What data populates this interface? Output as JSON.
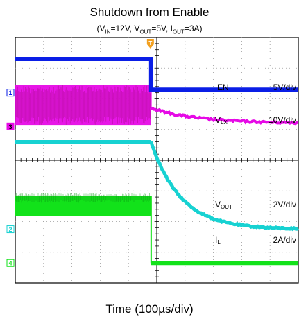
{
  "chart_data": {
    "type": "line",
    "title": "Shutdown from Enable",
    "subtitle": {
      "prefix": "(V",
      "vin_sub": "IN",
      "vin_value": "=12V, V",
      "vout_sub": "OUT",
      "vout_value": "=5V, I",
      "iout_sub": "OUT",
      "iout_value": "=3A)"
    },
    "xlabel": "Time (100µs/div)",
    "divisions": {
      "x": 10,
      "y": 8
    },
    "trigger_marker": "T",
    "series": [
      {
        "name": "EN",
        "name_main": "EN",
        "name_sub": "",
        "scale": "5V/div",
        "channel": "1",
        "color": "#0a1ee6",
        "ref_div": 2.2,
        "before": 3.3,
        "after": 2.3,
        "kind": "step"
      },
      {
        "name": "VLX",
        "name_main": "V",
        "name_sub": "LX",
        "scale": "10V/div",
        "channel": "3",
        "color": "#e60ae6",
        "ref_div": 1.1,
        "before_low": 1.15,
        "before_high": 2.45,
        "after_start": 1.7,
        "after_end": 1.2,
        "kind": "switching"
      },
      {
        "name": "VOUT",
        "name_main": "V",
        "name_sub": "OUT",
        "scale": "2V/div",
        "channel": "2",
        "color": "#17d2d2",
        "ref_div": -2.25,
        "before": 0.6,
        "after": -2.25,
        "kind": "decay"
      },
      {
        "name": "IL",
        "name_main": "I",
        "name_sub": "L",
        "scale": "2A/div",
        "channel": "4",
        "color": "#12e21a",
        "ref_div": -3.35,
        "before": -1.5,
        "after": -3.35,
        "kind": "step_noisy"
      }
    ],
    "trigger_x_div": 4.8
  }
}
